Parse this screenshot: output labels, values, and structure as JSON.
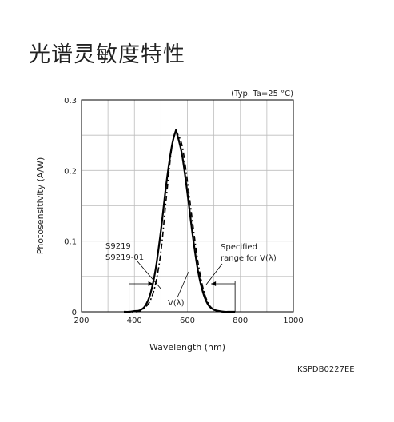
{
  "page": {
    "heading": "光谱灵敏度特性",
    "figure_code": "KSPDB0227EE"
  },
  "chart_data": {
    "type": "line",
    "title": "",
    "condition": "(Typ. Ta=25 °C)",
    "xlabel": "Wavelength (nm)",
    "ylabel": "Photosensitivity (A/W)",
    "xlim": [
      200,
      1000
    ],
    "ylim": [
      0,
      0.3
    ],
    "x_ticks": [
      200,
      400,
      600,
      800,
      1000
    ],
    "y_ticks": [
      0,
      0.1,
      0.2,
      0.3
    ],
    "x_tick_labels": [
      "200",
      "400",
      "600",
      "800",
      "1000"
    ],
    "y_tick_labels": [
      "0",
      "0.1",
      "0.2",
      "0.3"
    ],
    "grid": true,
    "series": [
      {
        "name": "S9219",
        "style": "solid",
        "color": "#000000",
        "x": [
          360,
          380,
          400,
          420,
          440,
          460,
          480,
          500,
          520,
          540,
          555,
          560,
          580,
          600,
          620,
          640,
          660,
          680,
          700,
          720,
          740,
          760,
          780
        ],
        "y": [
          0,
          0,
          0.001,
          0.002,
          0.008,
          0.025,
          0.06,
          0.115,
          0.18,
          0.232,
          0.255,
          0.253,
          0.222,
          0.168,
          0.108,
          0.058,
          0.026,
          0.009,
          0.003,
          0.001,
          0,
          0,
          0
        ]
      },
      {
        "name": "V(λ)",
        "style": "dash-dot",
        "color": "#000000",
        "x": [
          360,
          380,
          400,
          420,
          440,
          460,
          480,
          500,
          520,
          540,
          555,
          560,
          580,
          600,
          620,
          640,
          660,
          680,
          700,
          720,
          740,
          760,
          780
        ],
        "y": [
          0,
          0,
          0,
          0.001,
          0.006,
          0.016,
          0.04,
          0.085,
          0.16,
          0.23,
          0.255,
          0.254,
          0.235,
          0.185,
          0.125,
          0.07,
          0.032,
          0.011,
          0.003,
          0.001,
          0,
          0,
          0
        ]
      }
    ],
    "annotations": {
      "device_label_1": "S9219",
      "device_label_2": "S9219-01",
      "vlambda_label": "V(λ)",
      "spec_label_1": "Specified",
      "spec_label_2": "range for V(λ)"
    },
    "specified_range": [
      380,
      780
    ]
  }
}
